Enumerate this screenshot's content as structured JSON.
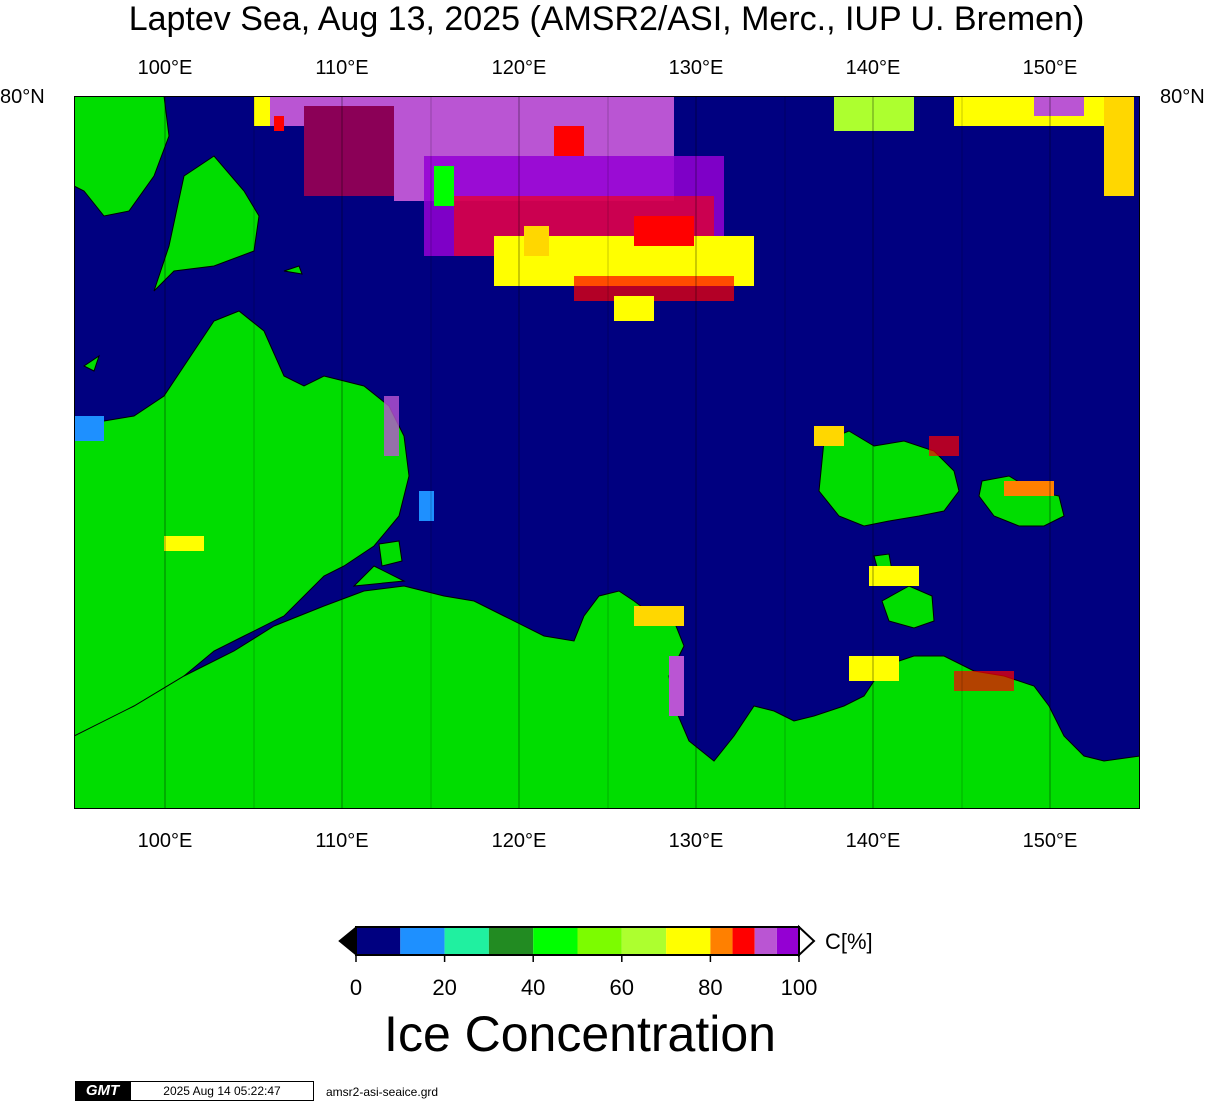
{
  "title": "Laptev Sea, Aug 13, 2025 (AMSR2/ASI, Merc., IUP U. Bremen)",
  "lon_ticks": [
    "100°E",
    "110°E",
    "120°E",
    "130°E",
    "140°E",
    "150°E"
  ],
  "lat_label": "80°N",
  "colorbar": {
    "colors": [
      "#000080",
      "#1e90ff",
      "#20f0a0",
      "#228b22",
      "#00e000",
      "#00ff00",
      "#7cfc00",
      "#adff2f",
      "#ffff00",
      "#ffd700",
      "#ff8000",
      "#ff0000",
      "#ba55d3",
      "#9400d3"
    ],
    "tick_labels": [
      "0",
      "20",
      "40",
      "60",
      "80",
      "100"
    ],
    "unit": "C[%]",
    "title": "Ice Concentration"
  },
  "colors": {
    "ocean": "#000080",
    "land": "#00dd00",
    "coast": "#000000"
  },
  "footer": {
    "logo": "GMT",
    "timestamp": "2025 Aug 14 05:22:47",
    "file": "amsr2-asi-seaice.grd"
  }
}
